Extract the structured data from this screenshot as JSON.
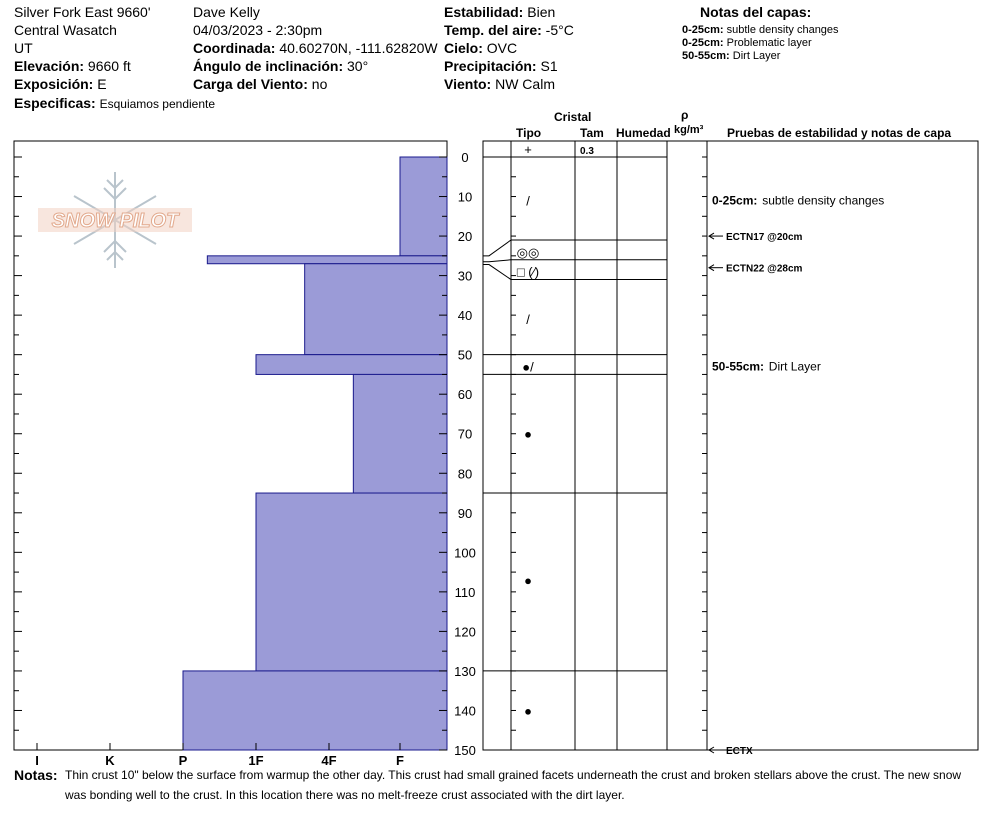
{
  "header": {
    "location": "Silver Fork East 9660'",
    "range": "Central Wasatch",
    "state": "UT",
    "elevation_label": "Elevación:",
    "elevation": "9660 ft",
    "aspect_label": "Exposición:",
    "aspect": "E",
    "specifics_label": "Especificas:",
    "specifics": "Esquiamos pendiente",
    "observer": "Dave Kelly",
    "datetime": "04/03/2023 - 2:30pm",
    "coord_label": "Coordinada:",
    "coord": "40.60270N, -111.62820W",
    "slope_label": "Ángulo de inclinación:",
    "slope": "30°",
    "wind_load_label": "Carga del Viento:",
    "wind_load": "no",
    "stability_label": "Estabilidad:",
    "stability": "Bien",
    "air_temp_label": "Temp. del aire:",
    "air_temp": "-5°C",
    "sky_label": "Cielo:",
    "sky": "OVC",
    "precip_label": "Precipitación:",
    "precip": "S1",
    "wind_label": "Viento:",
    "wind": "NW Calm"
  },
  "layer_notes": {
    "title": "Notas del capas:",
    "items": [
      {
        "range": "0-25cm:",
        "text": "subtle density changes"
      },
      {
        "range": "0-25cm:",
        "text": "Problematic layer"
      },
      {
        "range": "50-55cm:",
        "text": "Dirt Layer"
      }
    ]
  },
  "logo": {
    "text": "SNOW PILOT"
  },
  "columns": {
    "cristal": "Cristal",
    "tipo": "Tipo",
    "tam": "Tam",
    "humedad": "Humedad",
    "rho": "ρ",
    "density_unit": "kg/m³",
    "tests": "Pruebas de estabilidad y notas de capa"
  },
  "notes": {
    "label": "Notas:",
    "line1": "Thin crust 10\" below the surface from warmup the other day. This crust had small grained facets underneath the crust and broken stellars above the crust. The new snow",
    "line2": "was bonding well to the crust. In this location there was no melt-freeze crust associated with the dirt layer."
  },
  "colors": {
    "hardness_fill": "#9b9bd7",
    "hardness_stroke": "#1a1a8c",
    "logo": "#e8b49a"
  },
  "chart_data": {
    "type": "bar",
    "orientation": "horizontal",
    "depth_axis": {
      "range": [
        0,
        150
      ],
      "ticks": [
        0,
        10,
        20,
        30,
        40,
        50,
        60,
        70,
        80,
        90,
        100,
        110,
        120,
        130,
        140,
        150
      ],
      "unit": "cm"
    },
    "hardness_axis": {
      "categories": [
        "I",
        "K",
        "P",
        "1F",
        "4F",
        "F"
      ]
    },
    "hardness_layers": [
      {
        "top": 0,
        "bottom": 25,
        "hardness": "F"
      },
      {
        "top": 25,
        "bottom": 27,
        "hardness": "P+"
      },
      {
        "top": 27,
        "bottom": 50,
        "hardness": "4F-"
      },
      {
        "top": 50,
        "bottom": 55,
        "hardness": "1F"
      },
      {
        "top": 55,
        "bottom": 85,
        "hardness": "4F+"
      },
      {
        "top": 85,
        "bottom": 130,
        "hardness": "1F"
      },
      {
        "top": 130,
        "bottom": 150,
        "hardness": "P"
      }
    ],
    "layer_boundaries": [
      0,
      21,
      26,
      31,
      50,
      55,
      85,
      130
    ],
    "crystals": [
      {
        "depth": 0,
        "symbol": "+",
        "size": "0.3"
      },
      {
        "depth": 11,
        "symbol": "/",
        "size": ""
      },
      {
        "depth": 24,
        "symbol": "◎◎",
        "size": ""
      },
      {
        "depth": 29,
        "symbol": "□ (⁄)",
        "size": ""
      },
      {
        "depth": 41,
        "symbol": "/",
        "size": ""
      },
      {
        "depth": 53,
        "symbol": "●/",
        "size": ""
      },
      {
        "depth": 70,
        "symbol": "●",
        "size": ""
      },
      {
        "depth": 107,
        "symbol": "●",
        "size": ""
      },
      {
        "depth": 140,
        "symbol": "●",
        "size": ""
      }
    ],
    "tests": [
      {
        "depth": 20,
        "label": "ECTN17 @20cm"
      },
      {
        "depth": 28,
        "label": "ECTN22 @28cm"
      },
      {
        "depth": 150,
        "label": "ECTX"
      }
    ],
    "layer_annotations": [
      {
        "depth": 12,
        "range": "0-25cm:",
        "text": "subtle density changes"
      },
      {
        "depth": 54,
        "range": "50-55cm:",
        "text": "Dirt Layer"
      }
    ]
  }
}
